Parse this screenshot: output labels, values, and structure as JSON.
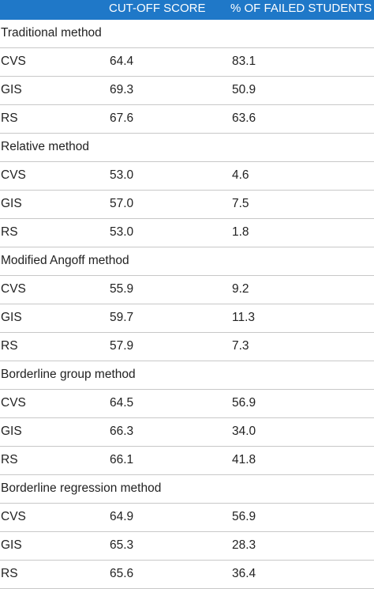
{
  "header": {
    "col1": "",
    "col2": "CUT-OFF SCORE",
    "col3": "% OF FAILED STUDENTS"
  },
  "sections": [
    {
      "title": "Traditional method",
      "rows": [
        {
          "label": "CVS",
          "cutoff": "64.4",
          "failed": "83.1"
        },
        {
          "label": "GIS",
          "cutoff": "69.3",
          "failed": "50.9"
        },
        {
          "label": "RS",
          "cutoff": "67.6",
          "failed": "63.6"
        }
      ]
    },
    {
      "title": "Relative method",
      "rows": [
        {
          "label": "CVS",
          "cutoff": "53.0",
          "failed": "4.6"
        },
        {
          "label": "GIS",
          "cutoff": "57.0",
          "failed": "7.5"
        },
        {
          "label": "RS",
          "cutoff": "53.0",
          "failed": "1.8"
        }
      ]
    },
    {
      "title": "Modified Angoff method",
      "rows": [
        {
          "label": "CVS",
          "cutoff": "55.9",
          "failed": "9.2"
        },
        {
          "label": "GIS",
          "cutoff": "59.7",
          "failed": "11.3"
        },
        {
          "label": "RS",
          "cutoff": "57.9",
          "failed": "7.3"
        }
      ]
    },
    {
      "title": "Borderline group method",
      "rows": [
        {
          "label": "CVS",
          "cutoff": "64.5",
          "failed": "56.9"
        },
        {
          "label": "GIS",
          "cutoff": "66.3",
          "failed": "34.0"
        },
        {
          "label": "RS",
          "cutoff": "66.1",
          "failed": "41.8"
        }
      ]
    },
    {
      "title": "Borderline regression method",
      "rows": [
        {
          "label": "CVS",
          "cutoff": "64.9",
          "failed": "56.9"
        },
        {
          "label": "GIS",
          "cutoff": "65.3",
          "failed": "28.3"
        },
        {
          "label": "RS",
          "cutoff": "65.6",
          "failed": "36.4"
        }
      ]
    }
  ]
}
